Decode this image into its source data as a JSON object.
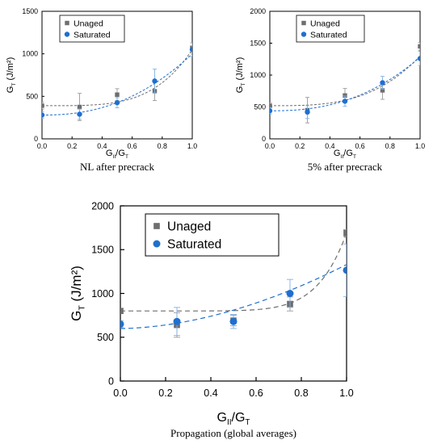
{
  "chart_data": [
    {
      "type": "scatter",
      "caption": "NL after precrack",
      "xlabel_main": "G",
      "xlabel_sub1": "II",
      "xlabel_mid": "/G",
      "xlabel_sub2": "T",
      "ylabel_main": "G",
      "ylabel_sub": "T",
      "ylabel_unit": " (J/m²)",
      "xlim": [
        0,
        1
      ],
      "ylim": [
        0,
        1500
      ],
      "xticks": [
        "0.0",
        "0.2",
        "0.4",
        "0.6",
        "0.8",
        "1.0"
      ],
      "yticks": [
        "0",
        "500",
        "1000",
        "1500"
      ],
      "legend_position": "top-left",
      "series": [
        {
          "name": "Unaged",
          "color": "#6e6e6e",
          "marker": "square",
          "x": [
            0,
            0.25,
            0.5,
            0.75,
            1.0
          ],
          "y": [
            390,
            375,
            520,
            560,
            1070
          ],
          "err": [
            40,
            160,
            70,
            110,
            60
          ],
          "fit": {
            "a": 390,
            "b": 660,
            "n": 4.0
          }
        },
        {
          "name": "Saturated",
          "color": "#1f6fd0",
          "marker": "circle",
          "x": [
            0,
            0.25,
            0.5,
            0.75,
            1.0
          ],
          "y": [
            280,
            290,
            425,
            680,
            1050
          ],
          "err": [
            40,
            60,
            60,
            140,
            80
          ],
          "fit": {
            "a": 280,
            "b": 720,
            "n": 2.3
          }
        }
      ]
    },
    {
      "type": "scatter",
      "caption": "5% after precrack",
      "xlabel_main": "G",
      "xlabel_sub1": "II",
      "xlabel_mid": "/G",
      "xlabel_sub2": "T",
      "ylabel_main": "G",
      "ylabel_sub": "T",
      "ylabel_unit": " (J/m²)",
      "xlim": [
        0,
        1
      ],
      "ylim": [
        0,
        2000
      ],
      "xticks": [
        "0.0",
        "0.2",
        "0.4",
        "0.6",
        "0.8",
        "1.0"
      ],
      "yticks": [
        "0",
        "500",
        "1000",
        "1500",
        "2000"
      ],
      "legend_position": "top-left",
      "series": [
        {
          "name": "Unaged",
          "color": "#6e6e6e",
          "marker": "square",
          "x": [
            0,
            0.25,
            0.5,
            0.75,
            1.0
          ],
          "y": [
            520,
            450,
            680,
            760,
            1450
          ],
          "err": [
            50,
            200,
            110,
            140,
            60
          ],
          "fit": {
            "a": 520,
            "b": 780,
            "n": 3.2
          }
        },
        {
          "name": "Saturated",
          "color": "#1f6fd0",
          "marker": "circle",
          "x": [
            0,
            0.25,
            0.5,
            0.75,
            1.0
          ],
          "y": [
            440,
            420,
            590,
            880,
            1260
          ],
          "err": [
            50,
            100,
            80,
            100,
            110
          ],
          "fit": {
            "a": 440,
            "b": 840,
            "n": 2.4
          }
        }
      ]
    },
    {
      "type": "scatter",
      "caption": "Propagation (global averages)",
      "xlabel_main": "G",
      "xlabel_sub1": "II",
      "xlabel_mid": "/G",
      "xlabel_sub2": "T",
      "ylabel_main": "G",
      "ylabel_sub": "T",
      "ylabel_unit": " (J/m²)",
      "xlim": [
        0,
        1
      ],
      "ylim": [
        0,
        2000
      ],
      "xticks": [
        "0.0",
        "0.2",
        "0.4",
        "0.6",
        "0.8",
        "1.0"
      ],
      "yticks": [
        "0",
        "500",
        "1000",
        "1500",
        "2000"
      ],
      "legend_position": "top-left",
      "series": [
        {
          "name": "Unaged",
          "color": "#6e6e6e",
          "marker": "square",
          "x": [
            0,
            0.25,
            0.5,
            0.75,
            1.0
          ],
          "y": [
            800,
            640,
            690,
            880,
            1690
          ],
          "err": [
            30,
            140,
            60,
            80,
            40
          ],
          "fit": {
            "a": 800,
            "b": 890,
            "n": 8
          }
        },
        {
          "name": "Saturated",
          "color": "#1f6fd0",
          "marker": "circle",
          "x": [
            0,
            0.25,
            0.5,
            0.75,
            1.0
          ],
          "y": [
            650,
            680,
            680,
            1000,
            1265
          ],
          "err": [
            40,
            160,
            80,
            160,
            300
          ],
          "fit": {
            "a": 600,
            "b": 730,
            "n": 1.8
          }
        }
      ]
    }
  ]
}
